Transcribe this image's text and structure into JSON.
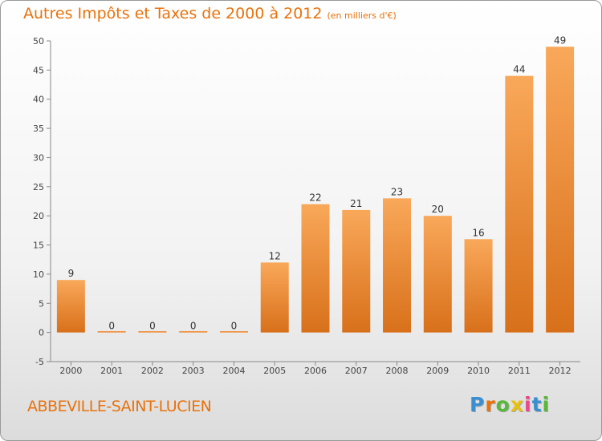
{
  "chart_data": {
    "type": "bar",
    "title": "Autres Impôts et Taxes de 2000 à 2012",
    "subtitle": "(en milliers d'€)",
    "categories": [
      "2000",
      "2001",
      "2002",
      "2003",
      "2004",
      "2005",
      "2006",
      "2007",
      "2008",
      "2009",
      "2010",
      "2011",
      "2012"
    ],
    "values": [
      9,
      0,
      0,
      0,
      0,
      12,
      22,
      21,
      23,
      20,
      16,
      44,
      49
    ],
    "xlabel": "",
    "ylabel": "",
    "ylim": [
      -5,
      50
    ],
    "yticks": [
      -5,
      0,
      5,
      10,
      15,
      20,
      25,
      30,
      35,
      40,
      45,
      50
    ],
    "grid": false,
    "bar_color": "#f0862a",
    "bar_color_light": "#f9a85a",
    "bar_color_dark": "#d8701a"
  },
  "footer": {
    "commune": "ABBEVILLE-SAINT-LUCIEN",
    "logo": {
      "letters": [
        "P",
        "r",
        "o",
        "x",
        "i",
        "t",
        "i"
      ],
      "colors": [
        "#3a8fd0",
        "#e8720c",
        "#58b83a",
        "#e8c10c",
        "#e84a8a",
        "#3a8fd0",
        "#58b83a"
      ]
    }
  }
}
